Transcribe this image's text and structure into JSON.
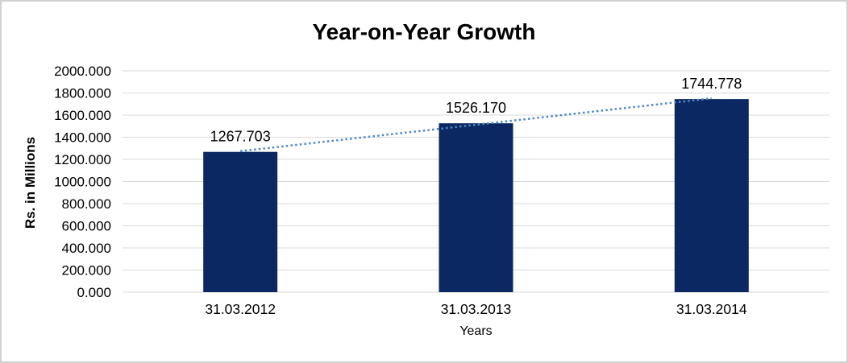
{
  "chart_data": {
    "type": "bar",
    "title": "Year-on-Year Growth",
    "categories": [
      "31.03.2012",
      "31.03.2013",
      "31.03.2014"
    ],
    "values": [
      1267.703,
      1526.17,
      1744.778
    ],
    "data_labels": [
      "1267.703",
      "1526.170",
      "1744.778"
    ],
    "xlabel": "Years",
    "ylabel": "Rs. in Millions",
    "ylim": [
      0,
      2000
    ],
    "ytick_step": 200,
    "yticks": [
      "2000.000",
      "1800.000",
      "1600.000",
      "1400.000",
      "1200.000",
      "1000.000",
      "800.000",
      "600.000",
      "400.000",
      "200.000",
      "0.000"
    ],
    "grid": true,
    "legend": "none",
    "trendline": {
      "type": "linear",
      "style": "dotted"
    },
    "colors": {
      "bar": "#0C2862",
      "trendline": "#4E87C7",
      "gridline": "#D9D9D9",
      "text": "#000000",
      "frame_border": "#D2D2D2",
      "background": "#FFFFFF"
    }
  }
}
